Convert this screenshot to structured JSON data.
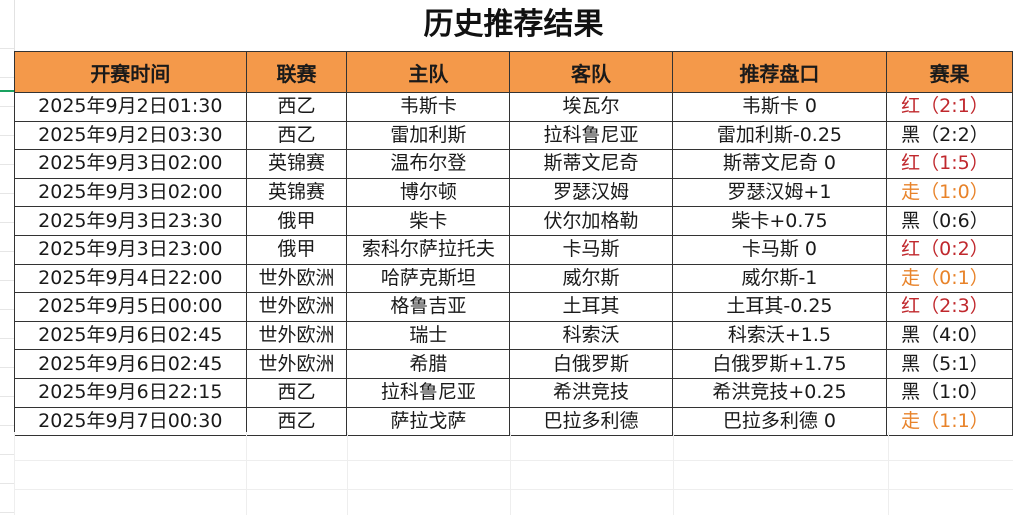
{
  "title": "历史推荐结果",
  "colors": {
    "header_bg": "#f4994a",
    "red": "#c0282d",
    "walk": "#e8832a",
    "black": "#1a1a1a"
  },
  "columns": [
    "开赛时间",
    "联赛",
    "主队",
    "客队",
    "推荐盘口",
    "赛果"
  ],
  "rows": [
    {
      "time": "2025年9月2日01:30",
      "league": "西乙",
      "home": "韦斯卡",
      "away": "埃瓦尔",
      "pick": "韦斯卡 0",
      "result": "红（2:1）",
      "status": "red"
    },
    {
      "time": "2025年9月2日03:30",
      "league": "西乙",
      "home": "雷加利斯",
      "away": "拉科鲁尼亚",
      "pick": "雷加利斯-0.25",
      "result": "黑（2:2）",
      "status": "black"
    },
    {
      "time": "2025年9月3日02:00",
      "league": "英锦赛",
      "home": "温布尔登",
      "away": "斯蒂文尼奇",
      "pick": "斯蒂文尼奇 0",
      "result": "红（1:5）",
      "status": "red"
    },
    {
      "time": "2025年9月3日02:00",
      "league": "英锦赛",
      "home": "博尔顿",
      "away": "罗瑟汉姆",
      "pick": "罗瑟汉姆+1",
      "result": "走（1:0）",
      "status": "walk"
    },
    {
      "time": "2025年9月3日23:30",
      "league": "俄甲",
      "home": "柴卡",
      "away": "伏尔加格勒",
      "pick": "柴卡+0.75",
      "result": "黑（0:6）",
      "status": "black"
    },
    {
      "time": "2025年9月3日23:00",
      "league": "俄甲",
      "home": "索科尔萨拉托夫",
      "away": "卡马斯",
      "pick": "卡马斯 0",
      "result": "红（0:2）",
      "status": "red"
    },
    {
      "time": "2025年9月4日22:00",
      "league": "世外欧洲",
      "home": "哈萨克斯坦",
      "away": "威尔斯",
      "pick": "威尔斯-1",
      "result": "走（0:1）",
      "status": "walk"
    },
    {
      "time": "2025年9月5日00:00",
      "league": "世外欧洲",
      "home": "格鲁吉亚",
      "away": "土耳其",
      "pick": "土耳其-0.25",
      "result": "红（2:3）",
      "status": "red"
    },
    {
      "time": "2025年9月6日02:45",
      "league": "世外欧洲",
      "home": "瑞士",
      "away": "科索沃",
      "pick": "科索沃+1.5",
      "result": "黑（4:0）",
      "status": "black"
    },
    {
      "time": "2025年9月6日02:45",
      "league": "世外欧洲",
      "home": "希腊",
      "away": "白俄罗斯",
      "pick": "白俄罗斯+1.75",
      "result": "黑（5:1）",
      "status": "black"
    },
    {
      "time": "2025年9月6日22:15",
      "league": "西乙",
      "home": "拉科鲁尼亚",
      "away": "希洪竞技",
      "pick": "希洪竞技+0.25",
      "result": "黑（1:0）",
      "status": "black"
    },
    {
      "time": "2025年9月7日00:30",
      "league": "西乙",
      "home": "萨拉戈萨",
      "away": "巴拉多利德",
      "pick": "巴拉多利德 0",
      "result": "走（1:1）",
      "status": "walk"
    }
  ]
}
